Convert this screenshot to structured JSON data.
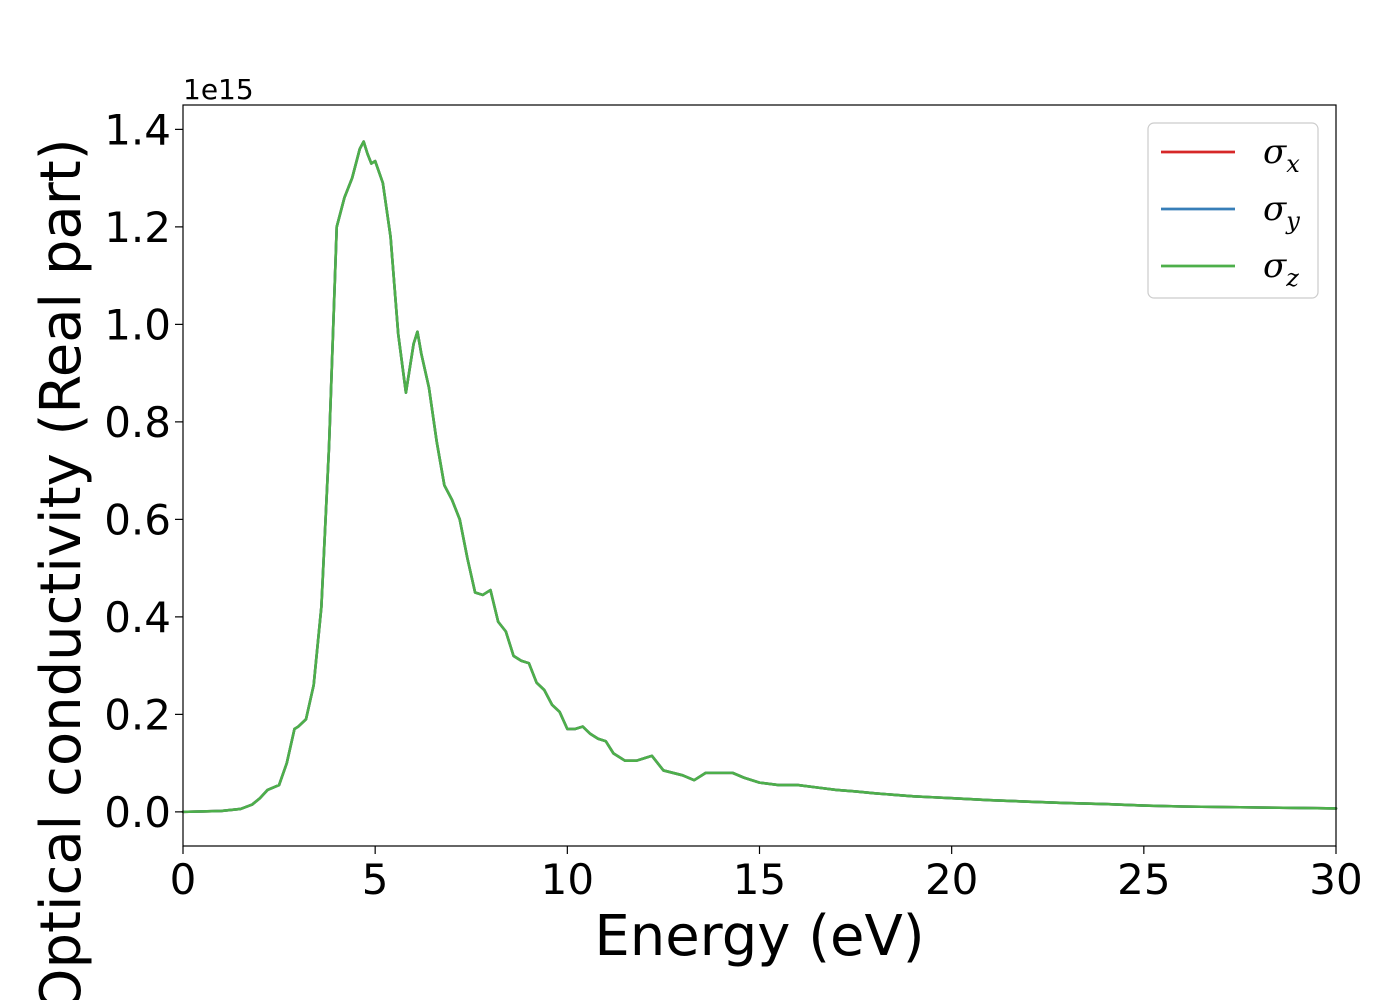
{
  "chart_data": {
    "type": "line",
    "xlabel": "Energy (eV)",
    "ylabel": "Optical conductivity (Real part)",
    "y_offset_label": "1e15",
    "xlim": [
      0,
      30
    ],
    "ylim": [
      -0.07,
      1.45
    ],
    "x_ticks": [
      0,
      5,
      10,
      15,
      20,
      25,
      30
    ],
    "x_tick_labels": [
      "0",
      "5",
      "10",
      "15",
      "20",
      "25",
      "30"
    ],
    "y_ticks": [
      0.0,
      0.2,
      0.4,
      0.6,
      0.8,
      1.0,
      1.2,
      1.4
    ],
    "y_tick_labels": [
      "0.0",
      "0.2",
      "0.4",
      "0.6",
      "0.8",
      "1.0",
      "1.2",
      "1.4"
    ],
    "grid": false,
    "legend_position": "top-right",
    "x": [
      0,
      0.5,
      1.0,
      1.5,
      1.8,
      2.0,
      2.2,
      2.5,
      2.7,
      2.9,
      3.0,
      3.2,
      3.4,
      3.6,
      3.8,
      4.0,
      4.2,
      4.4,
      4.6,
      4.7,
      4.8,
      4.9,
      5.0,
      5.2,
      5.4,
      5.6,
      5.8,
      6.0,
      6.1,
      6.2,
      6.4,
      6.6,
      6.8,
      7.0,
      7.2,
      7.4,
      7.6,
      7.8,
      8.0,
      8.2,
      8.4,
      8.6,
      8.8,
      9.0,
      9.2,
      9.4,
      9.6,
      9.8,
      10.0,
      10.2,
      10.4,
      10.6,
      10.8,
      11.0,
      11.2,
      11.5,
      11.8,
      12.0,
      12.2,
      12.5,
      13.0,
      13.3,
      13.6,
      14.0,
      14.3,
      14.6,
      15.0,
      15.5,
      16.0,
      16.5,
      17.0,
      17.5,
      18.0,
      18.5,
      19.0,
      19.5,
      20.0,
      20.5,
      21.0,
      22.0,
      23.0,
      24.0,
      25.0,
      26.0,
      27.0,
      28.0,
      29.0,
      30.0
    ],
    "series": [
      {
        "name": "σx",
        "color": "#d62728",
        "values": [
          0.0,
          0.001,
          0.002,
          0.006,
          0.015,
          0.028,
          0.045,
          0.055,
          0.1,
          0.17,
          0.175,
          0.19,
          0.26,
          0.42,
          0.75,
          1.2,
          1.26,
          1.3,
          1.36,
          1.375,
          1.35,
          1.33,
          1.335,
          1.29,
          1.18,
          0.98,
          0.86,
          0.96,
          0.985,
          0.94,
          0.87,
          0.76,
          0.67,
          0.64,
          0.6,
          0.52,
          0.45,
          0.445,
          0.455,
          0.39,
          0.37,
          0.32,
          0.31,
          0.305,
          0.265,
          0.25,
          0.22,
          0.205,
          0.17,
          0.17,
          0.175,
          0.16,
          0.15,
          0.145,
          0.12,
          0.105,
          0.105,
          0.11,
          0.115,
          0.085,
          0.075,
          0.065,
          0.08,
          0.08,
          0.08,
          0.07,
          0.06,
          0.055,
          0.055,
          0.05,
          0.045,
          0.042,
          0.038,
          0.035,
          0.032,
          0.03,
          0.028,
          0.026,
          0.024,
          0.021,
          0.018,
          0.016,
          0.013,
          0.011,
          0.01,
          0.009,
          0.008,
          0.007
        ]
      },
      {
        "name": "σy",
        "color": "#377eb8",
        "values": [
          0.0,
          0.001,
          0.002,
          0.006,
          0.015,
          0.028,
          0.045,
          0.055,
          0.1,
          0.17,
          0.175,
          0.19,
          0.26,
          0.42,
          0.75,
          1.2,
          1.26,
          1.3,
          1.36,
          1.375,
          1.35,
          1.33,
          1.335,
          1.29,
          1.18,
          0.98,
          0.86,
          0.96,
          0.985,
          0.94,
          0.87,
          0.76,
          0.67,
          0.64,
          0.6,
          0.52,
          0.45,
          0.445,
          0.455,
          0.39,
          0.37,
          0.32,
          0.31,
          0.305,
          0.265,
          0.25,
          0.22,
          0.205,
          0.17,
          0.17,
          0.175,
          0.16,
          0.15,
          0.145,
          0.12,
          0.105,
          0.105,
          0.11,
          0.115,
          0.085,
          0.075,
          0.065,
          0.08,
          0.08,
          0.08,
          0.07,
          0.06,
          0.055,
          0.055,
          0.05,
          0.045,
          0.042,
          0.038,
          0.035,
          0.032,
          0.03,
          0.028,
          0.026,
          0.024,
          0.021,
          0.018,
          0.016,
          0.013,
          0.011,
          0.01,
          0.009,
          0.008,
          0.007
        ]
      },
      {
        "name": "σz",
        "color": "#4daf4a",
        "values": [
          0.0,
          0.001,
          0.002,
          0.006,
          0.015,
          0.028,
          0.045,
          0.055,
          0.1,
          0.17,
          0.175,
          0.19,
          0.26,
          0.42,
          0.75,
          1.2,
          1.26,
          1.3,
          1.36,
          1.375,
          1.35,
          1.33,
          1.335,
          1.29,
          1.18,
          0.98,
          0.86,
          0.96,
          0.985,
          0.94,
          0.87,
          0.76,
          0.67,
          0.64,
          0.6,
          0.52,
          0.45,
          0.445,
          0.455,
          0.39,
          0.37,
          0.32,
          0.31,
          0.305,
          0.265,
          0.25,
          0.22,
          0.205,
          0.17,
          0.17,
          0.175,
          0.16,
          0.15,
          0.145,
          0.12,
          0.105,
          0.105,
          0.11,
          0.115,
          0.085,
          0.075,
          0.065,
          0.08,
          0.08,
          0.08,
          0.07,
          0.06,
          0.055,
          0.055,
          0.05,
          0.045,
          0.042,
          0.038,
          0.035,
          0.032,
          0.03,
          0.028,
          0.026,
          0.024,
          0.021,
          0.018,
          0.016,
          0.013,
          0.011,
          0.01,
          0.009,
          0.008,
          0.007
        ]
      }
    ],
    "legend": {
      "entries": [
        {
          "symbol": "σ",
          "sub": "x"
        },
        {
          "symbol": "σ",
          "sub": "y"
        },
        {
          "symbol": "σ",
          "sub": "z"
        }
      ]
    }
  }
}
